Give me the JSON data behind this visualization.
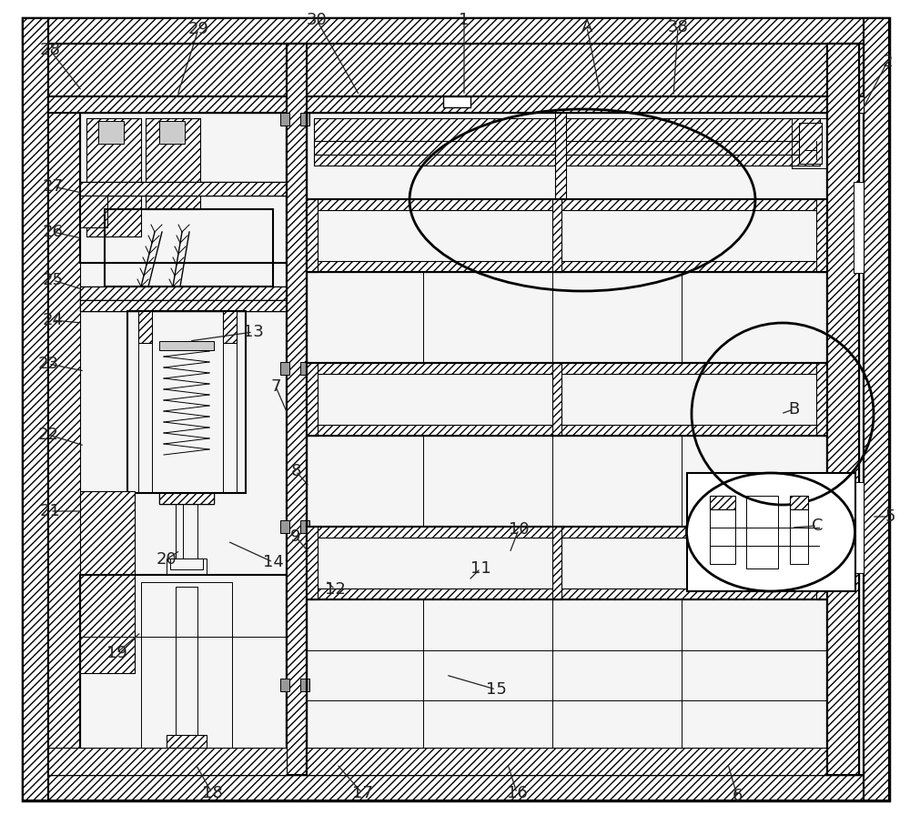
{
  "bg_color": "#ffffff",
  "line_color": "#000000",
  "fig_width": 10.0,
  "fig_height": 9.07,
  "annotations": [
    [
      "28",
      55,
      58,
      85,
      100
    ],
    [
      "29",
      220,
      30,
      195,
      100
    ],
    [
      "30",
      350,
      22,
      390,
      100
    ],
    [
      "1",
      510,
      22,
      510,
      100
    ],
    [
      "A",
      640,
      30,
      660,
      100
    ],
    [
      "38",
      740,
      30,
      740,
      100
    ],
    [
      "2",
      970,
      68,
      950,
      120
    ],
    [
      "27",
      60,
      210,
      90,
      210
    ],
    [
      "26",
      60,
      260,
      90,
      270
    ],
    [
      "25",
      60,
      310,
      90,
      320
    ],
    [
      "24",
      60,
      355,
      90,
      365
    ],
    [
      "13",
      270,
      370,
      210,
      380
    ],
    [
      "23",
      55,
      405,
      90,
      415
    ],
    [
      "7",
      300,
      430,
      318,
      455
    ],
    [
      "22",
      55,
      480,
      90,
      490
    ],
    [
      "8",
      330,
      520,
      340,
      540
    ],
    [
      "9",
      330,
      590,
      340,
      610
    ],
    [
      "10",
      570,
      585,
      565,
      610
    ],
    [
      "11",
      530,
      630,
      515,
      640
    ],
    [
      "12",
      370,
      650,
      360,
      640
    ],
    [
      "21",
      60,
      565,
      90,
      565
    ],
    [
      "20",
      185,
      620,
      195,
      610
    ],
    [
      "14",
      300,
      620,
      250,
      600
    ],
    [
      "5",
      975,
      570,
      960,
      570
    ],
    [
      "B",
      870,
      455,
      860,
      460
    ],
    [
      "C",
      895,
      580,
      870,
      585
    ],
    [
      "19",
      130,
      720,
      155,
      700
    ],
    [
      "15",
      545,
      760,
      490,
      748
    ],
    [
      "18",
      235,
      870,
      215,
      845
    ],
    [
      "17",
      400,
      870,
      370,
      845
    ],
    [
      "16",
      570,
      870,
      560,
      845
    ],
    [
      "6",
      810,
      875,
      800,
      845
    ]
  ]
}
